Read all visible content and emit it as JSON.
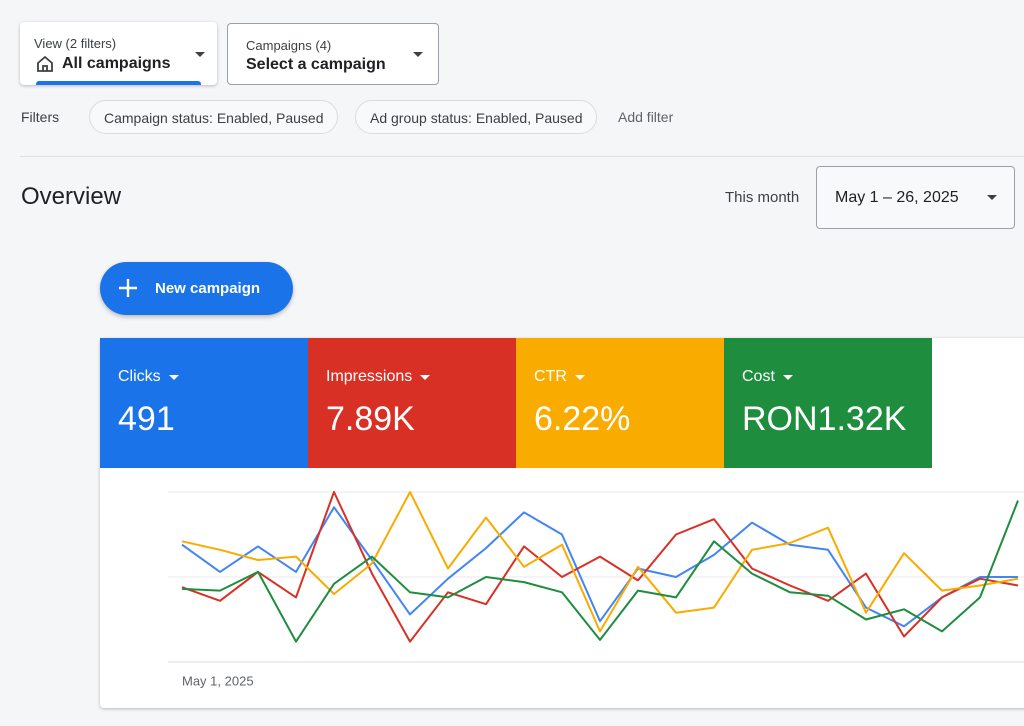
{
  "view_selector": {
    "label": "View (2 filters)",
    "value": "All campaigns"
  },
  "campaign_selector": {
    "label": "Campaigns (4)",
    "value": "Select a campaign"
  },
  "filters": {
    "label": "Filters",
    "chips": [
      "Campaign status: Enabled, Paused",
      "Ad group status: Enabled, Paused"
    ],
    "add": "Add filter"
  },
  "overview": {
    "title": "Overview",
    "range_label": "This month",
    "range": "May 1 – 26, 2025"
  },
  "new_campaign": "New campaign",
  "metrics": [
    {
      "name": "Clicks",
      "value": "491",
      "color": "#1a73e8"
    },
    {
      "name": "Impressions",
      "value": "7.89K",
      "color": "#d93025"
    },
    {
      "name": "CTR",
      "value": "6.22%",
      "color": "#f9ab00"
    },
    {
      "name": "Cost",
      "value": "RON1.32K",
      "color": "#1e8e3e"
    }
  ],
  "chart_data": {
    "type": "line",
    "categories": [
      "May 1, 2025",
      null,
      null,
      null,
      null,
      null,
      null,
      null,
      null,
      null,
      null,
      null,
      null,
      null,
      null,
      null,
      null,
      null,
      null,
      null,
      null,
      null,
      null
    ],
    "ylim": [
      0,
      100
    ],
    "series": [
      {
        "color": "#4285f4",
        "values": [
          69,
          53,
          68,
          53,
          91,
          60,
          28,
          49,
          67,
          88,
          75,
          24,
          55,
          50,
          63,
          82,
          69,
          66,
          32,
          21,
          38,
          50,
          50
        ]
      },
      {
        "color": "#d93025",
        "values": [
          44,
          36,
          53,
          38,
          100,
          52,
          12,
          41,
          34,
          68,
          50,
          62,
          48,
          75,
          84,
          55,
          45,
          36,
          52,
          15,
          38,
          49,
          45
        ]
      },
      {
        "color": "#f9ab00",
        "values": [
          71,
          66,
          60,
          62,
          40,
          58,
          100,
          55,
          85,
          56,
          69,
          18,
          56,
          29,
          32,
          66,
          70,
          79,
          29,
          64,
          42,
          45,
          49
        ]
      },
      {
        "color": "#1e8e3e",
        "values": [
          43,
          42,
          53,
          12,
          46,
          62,
          41,
          38,
          50,
          47,
          41,
          13,
          42,
          38,
          71,
          52,
          41,
          39,
          25,
          31,
          18,
          38,
          95
        ]
      }
    ]
  }
}
